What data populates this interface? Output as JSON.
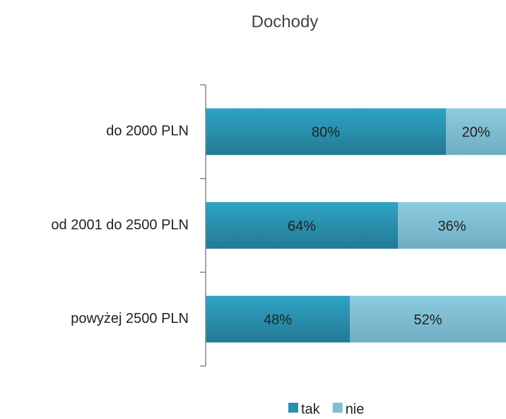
{
  "chart_data": {
    "type": "stacked_bar_horizontal",
    "title": "Dochody",
    "categories": [
      "do 2000 PLN",
      "od 2001 do 2500 PLN",
      "powyżej 2500 PLN"
    ],
    "series": [
      {
        "name": "tak",
        "color": "#2b8fae",
        "values": [
          80,
          64,
          48
        ],
        "value_labels": [
          "80%",
          "64%",
          "48%"
        ]
      },
      {
        "name": "nie",
        "color": "#80bfd4",
        "values": [
          20,
          36,
          52
        ],
        "value_labels": [
          "20%",
          "36%",
          "52%"
        ]
      }
    ],
    "xlim": [
      0,
      100
    ],
    "legend": "bottom"
  }
}
